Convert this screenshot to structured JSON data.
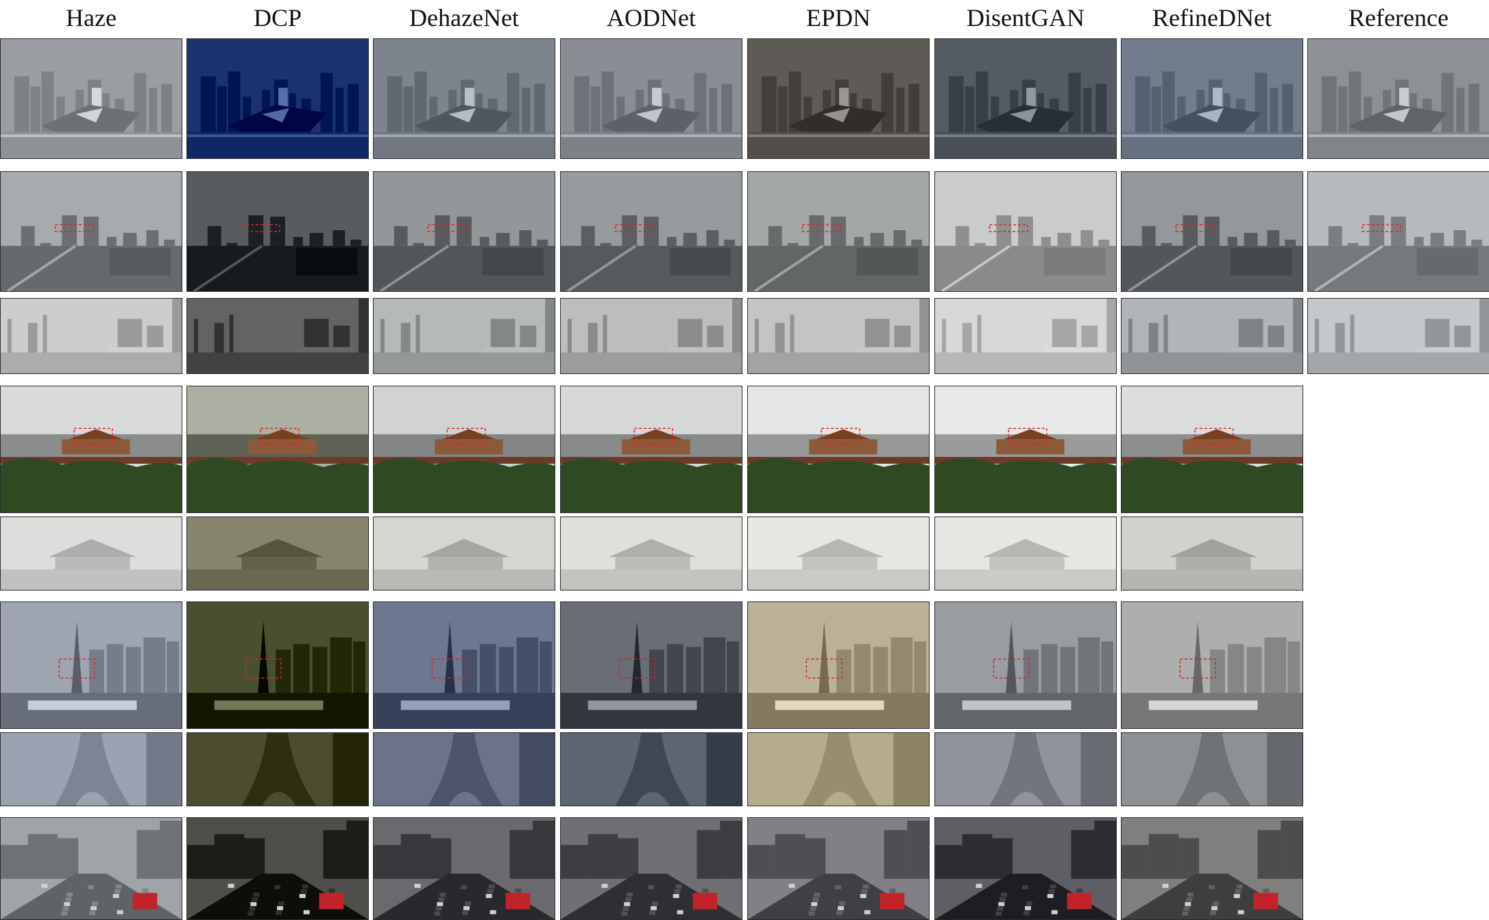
{
  "figure": {
    "columns": [
      "Haze",
      "DCP",
      "DehazeNet",
      "AODNet",
      "EPDN",
      "DisentGAN",
      "RefineDNet",
      "Reference"
    ],
    "rows": [
      {
        "scene": "city-skyline",
        "has_reference": true,
        "tones": [
          "#9a9da2",
          "#1b3270",
          "#7d848d",
          "#8a8e94",
          "#5e5a55",
          "#555b63",
          "#717c8c",
          "#8d9196"
        ]
      },
      {
        "scene": "city-overview",
        "has_reference": true,
        "tones": [
          "#8e9294",
          "#3e4347",
          "#7a7e81",
          "#7e8284",
          "#8a8e8f",
          "#b1b3b2",
          "#7a7f84",
          "#9da1a3"
        ]
      },
      {
        "scene": "city-overview-zoom",
        "has_reference": true,
        "tones": [
          "#b9bbbd",
          "#4f524f",
          "#a4a7a8",
          "#a9abac",
          "#b0b2b3",
          "#c6c7c5",
          "#9fa3a7",
          "#b3b6b8"
        ]
      },
      {
        "scene": "palace",
        "has_reference": false,
        "tones": [
          "#c7c9c9",
          "#9a9e90",
          "#bfc1c0",
          "#c4c6c5",
          "#d2d4d3",
          "#d6d7d6",
          "#c9cbcb"
        ]
      },
      {
        "scene": "palace-zoom",
        "has_reference": false,
        "tones": [
          "#d3d4d2",
          "#7c7a62",
          "#cbcbc7",
          "#d5d5d2",
          "#dcdcd9",
          "#dddcd8",
          "#c7c7c3"
        ]
      },
      {
        "scene": "tower-city",
        "has_reference": false,
        "tones": [
          "#8f96a1",
          "#3a4020",
          "#5e6880",
          "#5a5e66",
          "#aca28a",
          "#8a8e92",
          "#9e9f9f"
        ]
      },
      {
        "scene": "tower-zoom",
        "has_reference": false,
        "tones": [
          "#9ba3b3",
          "#4e4c2e",
          "#6a7388",
          "#5d6472",
          "#b7ab8e",
          "#8f949a",
          "#8d9094"
        ]
      },
      {
        "scene": "street-traffic",
        "has_reference": false,
        "tones": [
          "#8c8f93",
          "#3c3a36",
          "#57555a",
          "#5d5b60",
          "#6c6c72",
          "#4a4a50",
          "#6c6b6a"
        ]
      }
    ]
  }
}
